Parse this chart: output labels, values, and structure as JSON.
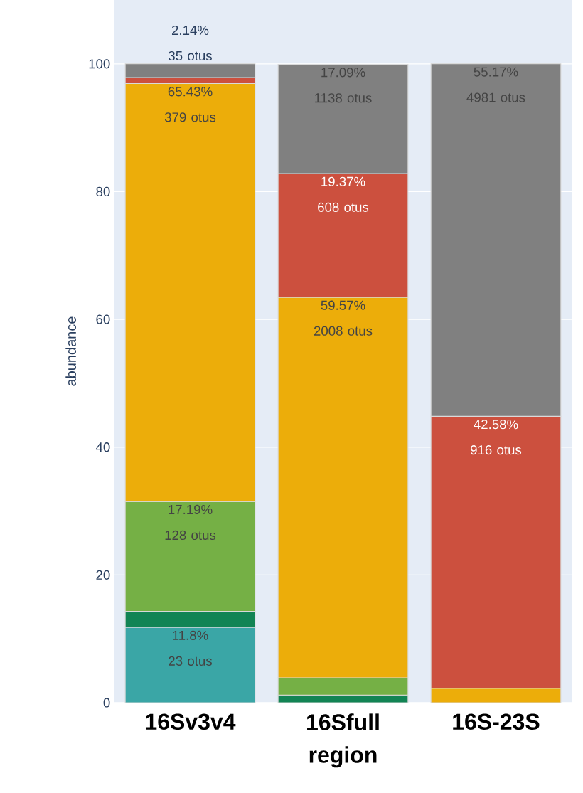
{
  "chart_data": {
    "type": "bar",
    "stacked": true,
    "xlabel": "region",
    "ylabel": "abundance",
    "categories": [
      "16Sv3v4",
      "16Sfull",
      "16S-23S"
    ],
    "ylim": [
      0,
      110
    ],
    "yticks": [
      0,
      20,
      40,
      60,
      80,
      100
    ],
    "grid": "y",
    "series": [
      {
        "color": "#3aa6a6",
        "values": [
          11.8,
          null,
          null
        ],
        "value_labels": [
          "11.8% 23 otus",
          null,
          null
        ]
      },
      {
        "color": "#128454",
        "values": [
          2.5,
          1.2,
          null
        ]
      },
      {
        "color": "#75b045",
        "values": [
          17.19,
          2.7,
          null
        ],
        "value_labels": [
          "17.19% 128 otus",
          null,
          null
        ]
      },
      {
        "color": "#ecad0a",
        "values": [
          65.43,
          59.57,
          2.25
        ],
        "value_labels": [
          "65.43% 379 otus",
          "59.57% 2008 otus",
          null
        ]
      },
      {
        "color": "#cc503e",
        "values": [
          0.94,
          19.37,
          42.58
        ],
        "value_labels": [
          null,
          "19.37% 608 otus",
          "42.58% 916 otus"
        ]
      },
      {
        "color": "#808080",
        "values": [
          2.14,
          17.09,
          55.17
        ],
        "value_labels": [
          "2.14% 35 otus",
          "17.09% 1138 otus",
          "55.17% 4981 otus"
        ]
      }
    ]
  }
}
